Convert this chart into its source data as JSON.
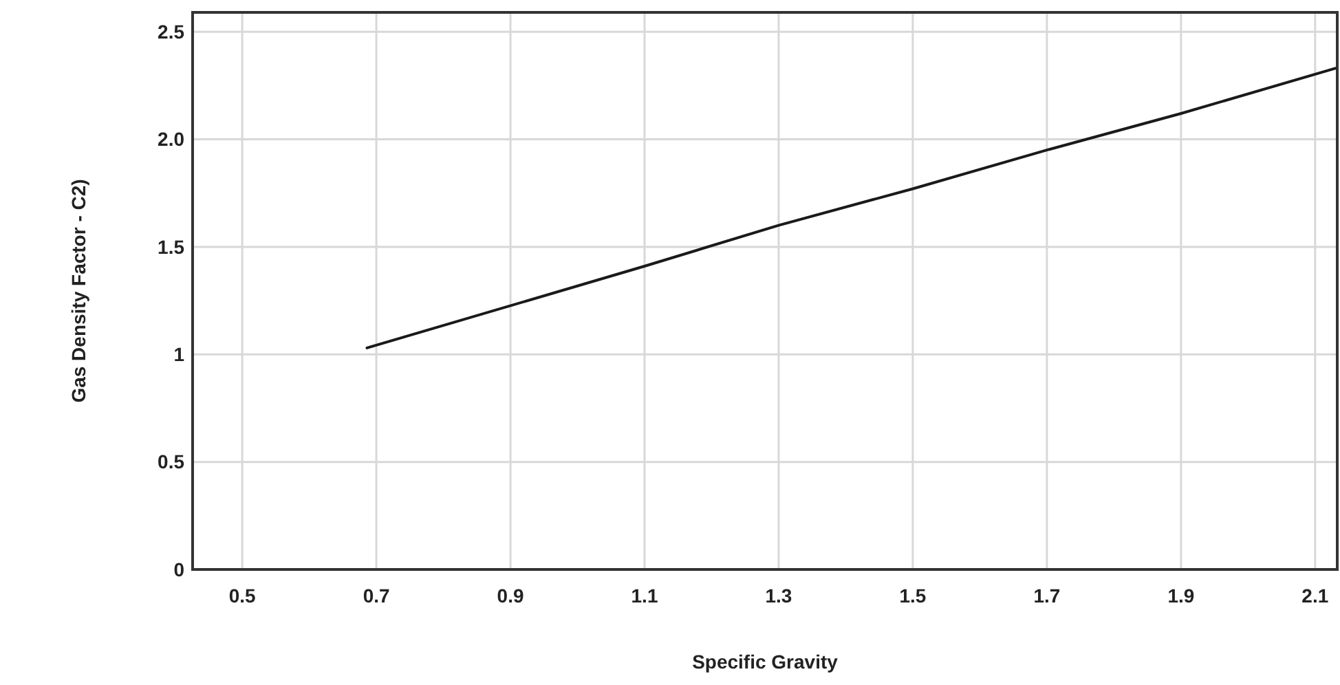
{
  "chart_data": {
    "type": "line",
    "xlabel": "Specific Gravity",
    "ylabel": "Gas Density Factor - C2)",
    "x": [
      0.686,
      1.1,
      1.3,
      1.5,
      1.7,
      1.9,
      2.13
    ],
    "series": [
      {
        "color": "#1a1a1a",
        "values": [
          1.03,
          1.41,
          1.6,
          1.77,
          1.95,
          2.12,
          2.33
        ]
      }
    ],
    "xlim": [
      0.426,
      2.133
    ],
    "xticks": [
      0.5,
      0.7,
      0.9,
      1.1,
      1.3,
      1.5,
      1.7,
      1.9,
      2.1
    ],
    "ylim": [
      0,
      2.59
    ],
    "yticks": [
      0,
      0.5,
      1,
      1.5,
      {
        "value": 2,
        "label": "2.0"
      },
      2.5
    ],
    "grid": true,
    "marker": "none",
    "line_style": "solid"
  }
}
